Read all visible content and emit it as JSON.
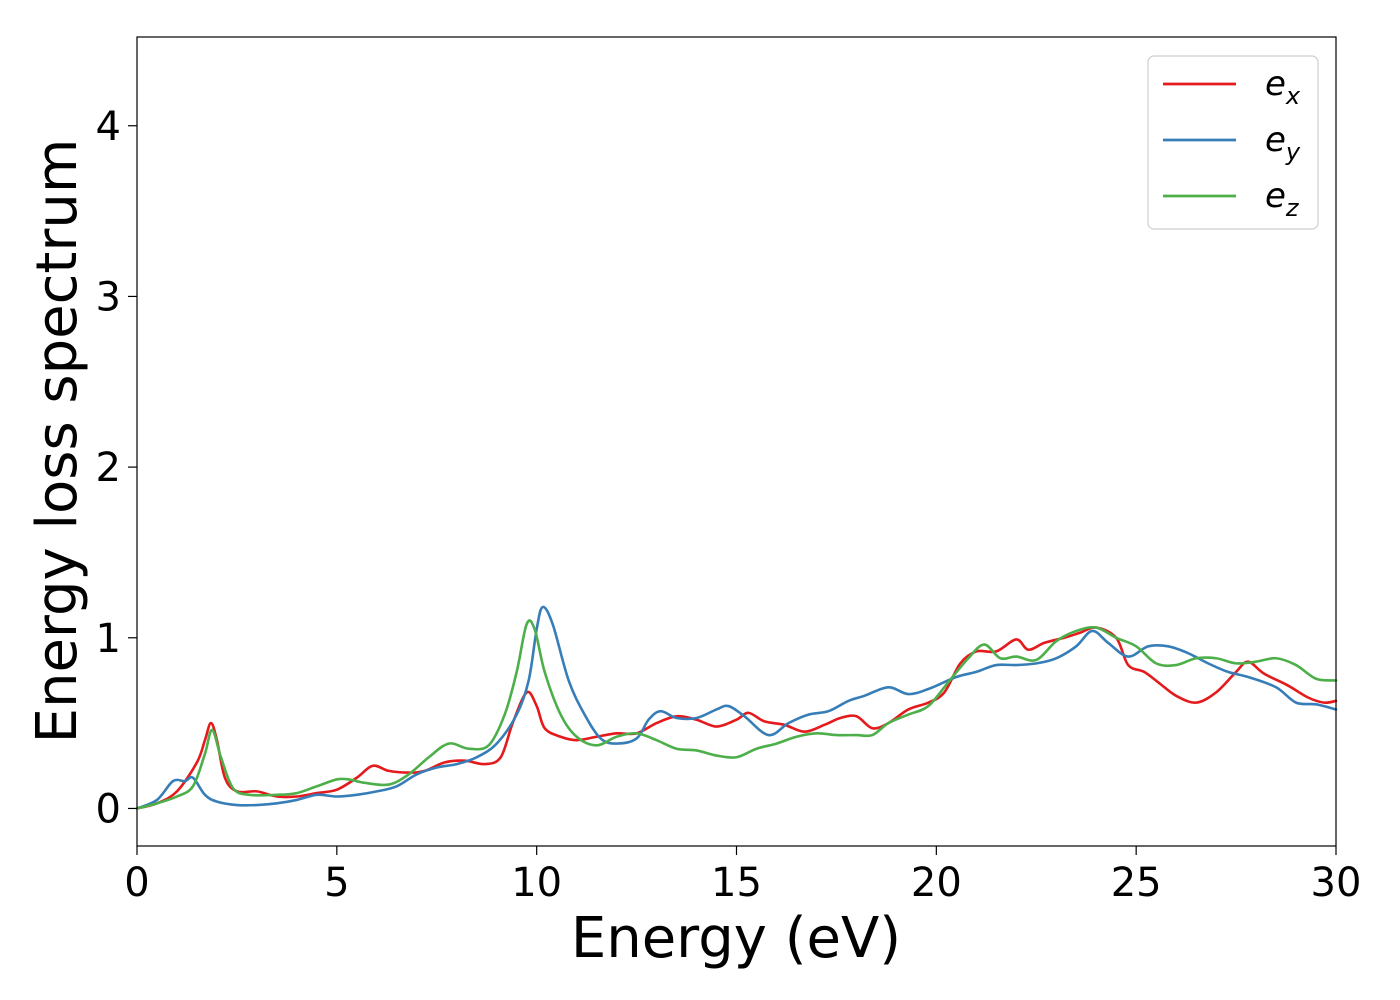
{
  "chart_data": {
    "type": "line",
    "title": "",
    "xlabel": "Energy (eV)",
    "ylabel": "Energy loss spectrum",
    "xlim": [
      0,
      30
    ],
    "ylim": [
      -0.22,
      4.52
    ],
    "xticks": [
      0,
      5,
      10,
      15,
      20,
      25,
      30
    ],
    "yticks": [
      0,
      1,
      2,
      3,
      4
    ],
    "xtick_labels": [
      "0",
      "5",
      "10",
      "15",
      "20",
      "25",
      "30"
    ],
    "ytick_labels": [
      "0",
      "1",
      "2",
      "3",
      "4"
    ],
    "grid": false,
    "legend_position": "top-right",
    "series": [
      {
        "name": "e",
        "subscript": "x",
        "color": "#e41a1c",
        "points": [
          [
            0,
            0
          ],
          [
            0.5,
            0.03
          ],
          [
            1.0,
            0.1
          ],
          [
            1.5,
            0.27
          ],
          [
            1.7,
            0.4
          ],
          [
            1.85,
            0.5
          ],
          [
            2.0,
            0.4
          ],
          [
            2.2,
            0.18
          ],
          [
            2.5,
            0.1
          ],
          [
            3.0,
            0.1
          ],
          [
            3.5,
            0.07
          ],
          [
            4.0,
            0.07
          ],
          [
            4.5,
            0.09
          ],
          [
            5.0,
            0.11
          ],
          [
            5.5,
            0.18
          ],
          [
            5.9,
            0.25
          ],
          [
            6.3,
            0.22
          ],
          [
            6.8,
            0.21
          ],
          [
            7.2,
            0.22
          ],
          [
            7.7,
            0.27
          ],
          [
            8.2,
            0.28
          ],
          [
            8.7,
            0.26
          ],
          [
            9.1,
            0.3
          ],
          [
            9.4,
            0.5
          ],
          [
            9.75,
            0.68
          ],
          [
            10.0,
            0.6
          ],
          [
            10.2,
            0.47
          ],
          [
            10.6,
            0.42
          ],
          [
            11.0,
            0.4
          ],
          [
            11.5,
            0.42
          ],
          [
            12.0,
            0.44
          ],
          [
            12.5,
            0.44
          ],
          [
            13.0,
            0.5
          ],
          [
            13.5,
            0.54
          ],
          [
            14.0,
            0.52
          ],
          [
            14.5,
            0.48
          ],
          [
            15.0,
            0.52
          ],
          [
            15.3,
            0.56
          ],
          [
            15.7,
            0.51
          ],
          [
            16.2,
            0.49
          ],
          [
            16.7,
            0.45
          ],
          [
            17.2,
            0.49
          ],
          [
            17.6,
            0.53
          ],
          [
            18.0,
            0.54
          ],
          [
            18.4,
            0.47
          ],
          [
            18.8,
            0.5
          ],
          [
            19.3,
            0.58
          ],
          [
            19.8,
            0.62
          ],
          [
            20.2,
            0.68
          ],
          [
            20.6,
            0.85
          ],
          [
            21.0,
            0.92
          ],
          [
            21.5,
            0.92
          ],
          [
            22.0,
            0.99
          ],
          [
            22.3,
            0.93
          ],
          [
            22.7,
            0.97
          ],
          [
            23.2,
            1.0
          ],
          [
            23.6,
            1.03
          ],
          [
            24.0,
            1.06
          ],
          [
            24.5,
            1.0
          ],
          [
            24.8,
            0.84
          ],
          [
            25.2,
            0.8
          ],
          [
            25.6,
            0.73
          ],
          [
            26.0,
            0.66
          ],
          [
            26.5,
            0.62
          ],
          [
            27.0,
            0.68
          ],
          [
            27.5,
            0.8
          ],
          [
            27.8,
            0.86
          ],
          [
            28.2,
            0.79
          ],
          [
            28.8,
            0.72
          ],
          [
            29.3,
            0.65
          ],
          [
            29.7,
            0.62
          ],
          [
            30.0,
            0.63
          ]
        ]
      },
      {
        "name": "e",
        "subscript": "y",
        "color": "#377eb8",
        "points": [
          [
            0,
            0
          ],
          [
            0.5,
            0.05
          ],
          [
            0.9,
            0.16
          ],
          [
            1.2,
            0.16
          ],
          [
            1.4,
            0.18
          ],
          [
            1.7,
            0.08
          ],
          [
            2.0,
            0.04
          ],
          [
            2.5,
            0.02
          ],
          [
            3.0,
            0.02
          ],
          [
            3.5,
            0.03
          ],
          [
            4.0,
            0.05
          ],
          [
            4.5,
            0.08
          ],
          [
            5.0,
            0.07
          ],
          [
            5.5,
            0.08
          ],
          [
            6.0,
            0.1
          ],
          [
            6.5,
            0.13
          ],
          [
            7.0,
            0.2
          ],
          [
            7.5,
            0.24
          ],
          [
            8.0,
            0.26
          ],
          [
            8.5,
            0.3
          ],
          [
            9.0,
            0.38
          ],
          [
            9.5,
            0.55
          ],
          [
            9.8,
            0.75
          ],
          [
            10.0,
            1.05
          ],
          [
            10.15,
            1.18
          ],
          [
            10.4,
            1.08
          ],
          [
            10.8,
            0.75
          ],
          [
            11.2,
            0.55
          ],
          [
            11.6,
            0.41
          ],
          [
            12.0,
            0.38
          ],
          [
            12.5,
            0.41
          ],
          [
            12.8,
            0.52
          ],
          [
            13.1,
            0.57
          ],
          [
            13.5,
            0.53
          ],
          [
            14.0,
            0.53
          ],
          [
            14.5,
            0.58
          ],
          [
            14.8,
            0.6
          ],
          [
            15.2,
            0.54
          ],
          [
            15.8,
            0.43
          ],
          [
            16.3,
            0.5
          ],
          [
            16.8,
            0.55
          ],
          [
            17.3,
            0.57
          ],
          [
            17.8,
            0.63
          ],
          [
            18.2,
            0.66
          ],
          [
            18.8,
            0.71
          ],
          [
            19.3,
            0.67
          ],
          [
            19.8,
            0.7
          ],
          [
            20.5,
            0.77
          ],
          [
            21.0,
            0.8
          ],
          [
            21.5,
            0.84
          ],
          [
            22.0,
            0.84
          ],
          [
            22.5,
            0.85
          ],
          [
            23.0,
            0.88
          ],
          [
            23.5,
            0.95
          ],
          [
            23.9,
            1.04
          ],
          [
            24.3,
            0.97
          ],
          [
            24.8,
            0.89
          ],
          [
            25.3,
            0.95
          ],
          [
            25.8,
            0.95
          ],
          [
            26.3,
            0.91
          ],
          [
            26.8,
            0.85
          ],
          [
            27.3,
            0.8
          ],
          [
            27.8,
            0.77
          ],
          [
            28.5,
            0.71
          ],
          [
            29.0,
            0.62
          ],
          [
            29.5,
            0.61
          ],
          [
            30.0,
            0.58
          ]
        ]
      },
      {
        "name": "e",
        "subscript": "z",
        "color": "#4daf4a",
        "points": [
          [
            0,
            0
          ],
          [
            0.5,
            0.03
          ],
          [
            1.0,
            0.07
          ],
          [
            1.4,
            0.13
          ],
          [
            1.7,
            0.32
          ],
          [
            1.88,
            0.46
          ],
          [
            2.1,
            0.3
          ],
          [
            2.4,
            0.12
          ],
          [
            2.8,
            0.08
          ],
          [
            3.5,
            0.08
          ],
          [
            4.0,
            0.09
          ],
          [
            4.5,
            0.13
          ],
          [
            5.0,
            0.17
          ],
          [
            5.3,
            0.17
          ],
          [
            5.7,
            0.15
          ],
          [
            6.3,
            0.14
          ],
          [
            6.8,
            0.2
          ],
          [
            7.3,
            0.3
          ],
          [
            7.8,
            0.38
          ],
          [
            8.3,
            0.35
          ],
          [
            8.8,
            0.37
          ],
          [
            9.2,
            0.55
          ],
          [
            9.5,
            0.8
          ],
          [
            9.75,
            1.08
          ],
          [
            9.95,
            1.05
          ],
          [
            10.2,
            0.8
          ],
          [
            10.6,
            0.55
          ],
          [
            11.0,
            0.42
          ],
          [
            11.5,
            0.37
          ],
          [
            12.0,
            0.42
          ],
          [
            12.5,
            0.44
          ],
          [
            13.0,
            0.4
          ],
          [
            13.5,
            0.35
          ],
          [
            14.0,
            0.34
          ],
          [
            14.5,
            0.31
          ],
          [
            15.0,
            0.3
          ],
          [
            15.5,
            0.35
          ],
          [
            16.0,
            0.38
          ],
          [
            16.5,
            0.42
          ],
          [
            17.0,
            0.44
          ],
          [
            17.5,
            0.43
          ],
          [
            18.0,
            0.43
          ],
          [
            18.4,
            0.43
          ],
          [
            18.8,
            0.5
          ],
          [
            19.3,
            0.55
          ],
          [
            19.8,
            0.6
          ],
          [
            20.3,
            0.74
          ],
          [
            20.8,
            0.88
          ],
          [
            21.2,
            0.96
          ],
          [
            21.6,
            0.88
          ],
          [
            22.0,
            0.89
          ],
          [
            22.5,
            0.87
          ],
          [
            23.0,
            0.98
          ],
          [
            23.5,
            1.04
          ],
          [
            24.0,
            1.06
          ],
          [
            24.5,
            1.0
          ],
          [
            25.0,
            0.95
          ],
          [
            25.5,
            0.85
          ],
          [
            26.0,
            0.84
          ],
          [
            26.5,
            0.88
          ],
          [
            27.0,
            0.88
          ],
          [
            27.5,
            0.85
          ],
          [
            28.0,
            0.86
          ],
          [
            28.5,
            0.88
          ],
          [
            29.0,
            0.84
          ],
          [
            29.5,
            0.76
          ],
          [
            30.0,
            0.75
          ]
        ]
      }
    ]
  }
}
